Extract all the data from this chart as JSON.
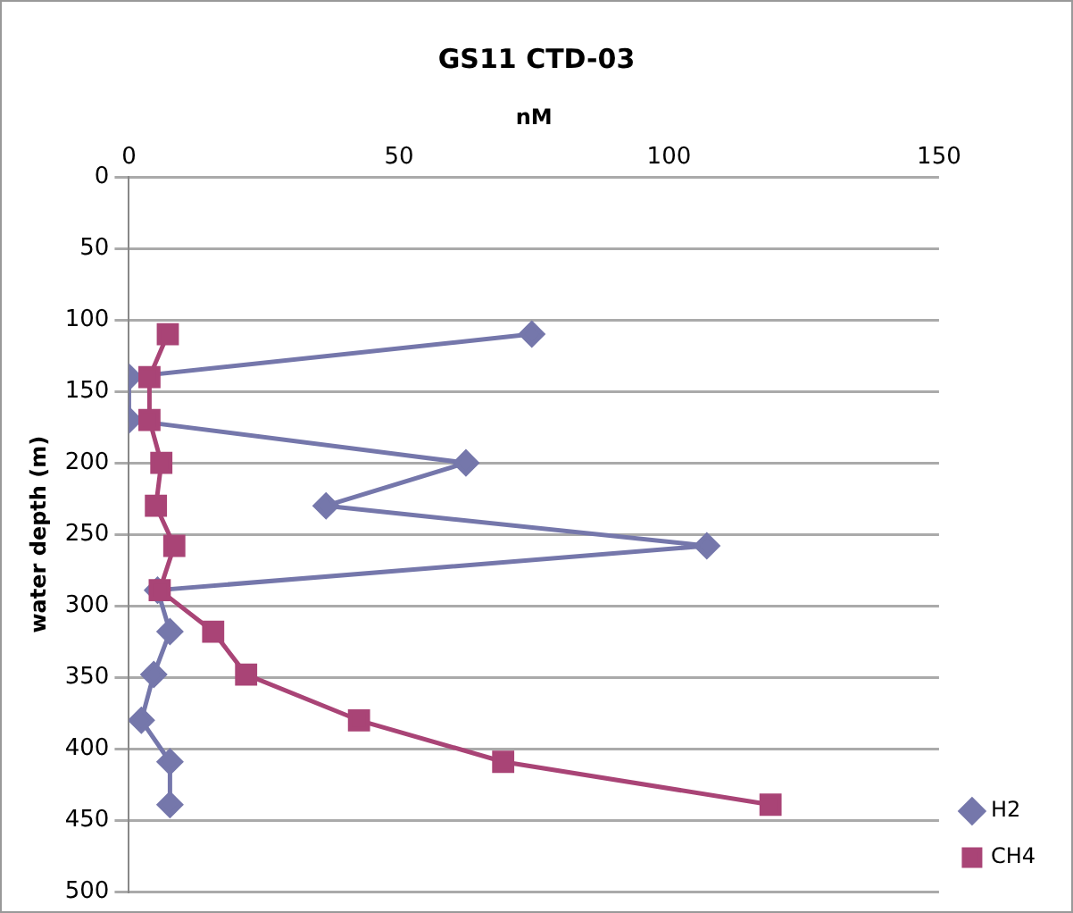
{
  "chart_data": {
    "type": "line",
    "title": "GS11 CTD-03",
    "xlabel": "nM",
    "ylabel": "water depth (m)",
    "xlim": [
      0,
      150
    ],
    "xticks": [
      0,
      50,
      100,
      150
    ],
    "ylim": [
      500,
      0
    ],
    "yticks": [
      0,
      50,
      100,
      150,
      200,
      250,
      300,
      350,
      400,
      450,
      500
    ],
    "grid": "y",
    "legend": "right",
    "series": [
      {
        "name": "H2",
        "color": "#7577ab",
        "marker": "diamond",
        "x": [
          74.6,
          0,
          0,
          62.4,
          36.5,
          107,
          5.3,
          7.6,
          4.6,
          2.3,
          7.6,
          7.6
        ],
        "values": [
          110,
          140,
          170,
          200,
          230,
          258,
          289,
          318,
          348,
          380,
          409,
          439
        ]
      },
      {
        "name": "CH4",
        "color": "#a94476",
        "marker": "square",
        "x": [
          7.2,
          3.8,
          3.8,
          6,
          5,
          8.4,
          5.7,
          15.6,
          21.7,
          42.6,
          69.3,
          118.8
        ],
        "values": [
          110,
          140,
          170,
          200,
          230,
          258,
          289,
          318,
          348,
          380,
          409,
          439
        ]
      }
    ]
  }
}
